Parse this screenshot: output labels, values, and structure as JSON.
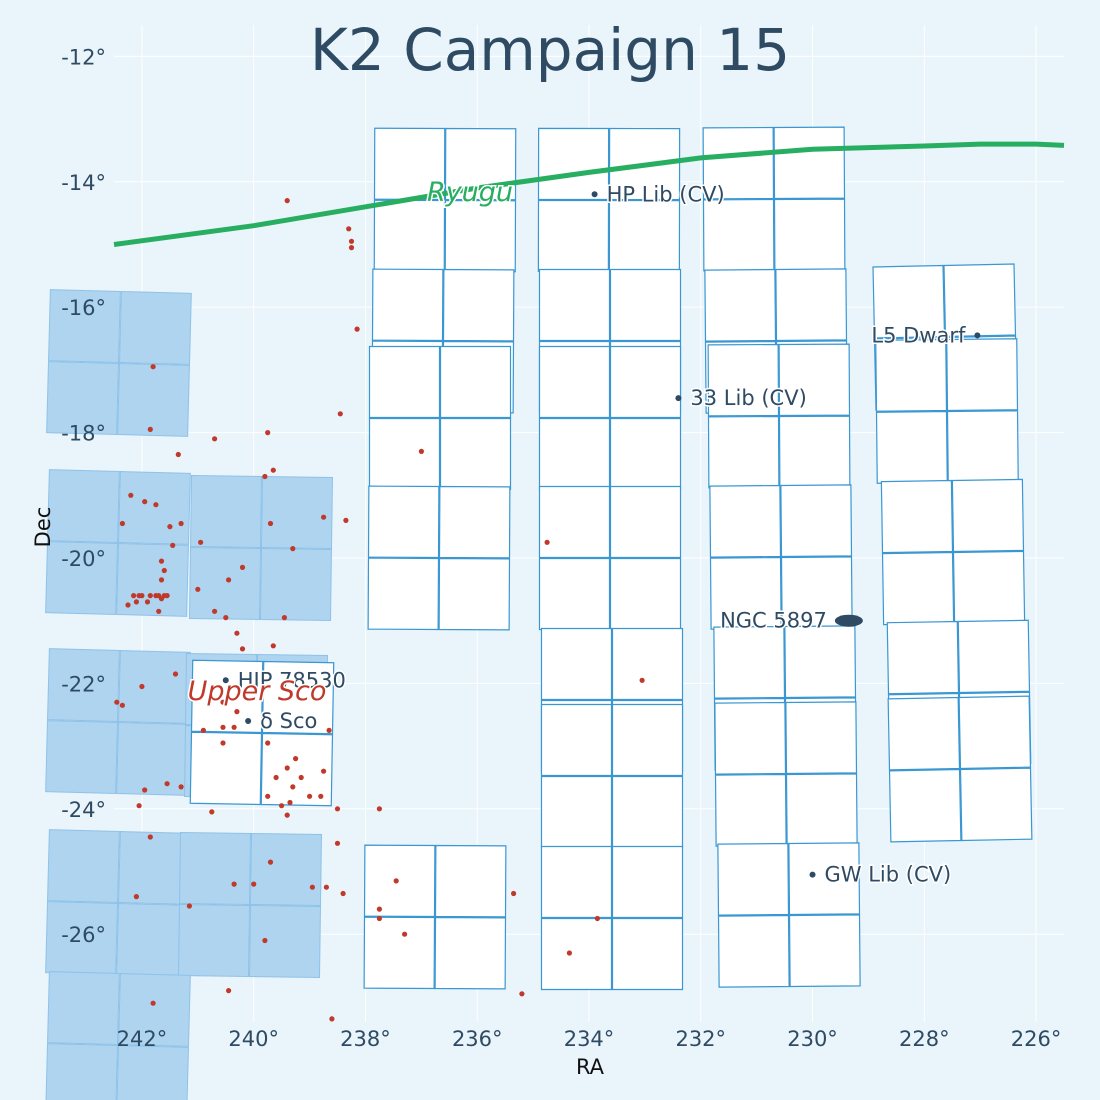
{
  "chart_data": {
    "type": "scatter",
    "title": "K2 Campaign 15",
    "xlabel": "RA",
    "ylabel": "Dec",
    "xlim": [
      242.5,
      225.5
    ],
    "ylim": [
      -27.4,
      -11.5
    ],
    "xticks": [
      242,
      240,
      238,
      236,
      234,
      232,
      230,
      228,
      226
    ],
    "yticks": [
      -12,
      -14,
      -16,
      -18,
      -20,
      -22,
      -24,
      -26
    ],
    "grid": true,
    "xtick_labels": [
      "242°",
      "240°",
      "238°",
      "236°",
      "234°",
      "232°",
      "230°",
      "228°",
      "226°"
    ],
    "ytick_labels": [
      "-12°",
      "-14°",
      "-16°",
      "-18°",
      "-20°",
      "-22°",
      "-24°",
      "-26°"
    ],
    "colors": {
      "background": "#e9f4fb",
      "grid": "#ffffff",
      "channel_edge": "#3a97d2",
      "neighbor_fill": "#aed4f0",
      "ryugu": "#27ae60",
      "upper_sco": "#c0392b",
      "label": "#2f4a63"
    },
    "ryugu_track": {
      "name": "Ryugu",
      "ra": [
        242.5,
        240.0,
        238.0,
        236.0,
        234.0,
        232.0,
        230.0,
        228.0,
        227.0,
        226.0,
        225.5
      ],
      "dec": [
        -15.0,
        -14.7,
        -14.4,
        -14.1,
        -13.85,
        -13.62,
        -13.48,
        -13.43,
        -13.4,
        -13.4,
        -13.42
      ]
    },
    "targets": [
      {
        "name": "HP Lib (CV)",
        "ra": 233.9,
        "dec": -14.2
      },
      {
        "name": "L5 Dwarf",
        "ra": 227.05,
        "dec": -16.45
      },
      {
        "name": "33 Lib (CV)",
        "ra": 232.4,
        "dec": -17.45
      },
      {
        "name": "HIP 78530",
        "ra": 240.5,
        "dec": -21.95
      },
      {
        "name": "δ Sco",
        "ra": 240.1,
        "dec": -22.6
      },
      {
        "name": "GW Lib (CV)",
        "ra": 230.0,
        "dec": -25.05
      }
    ],
    "cluster": {
      "name": "NGC 5897",
      "ra": 229.35,
      "dec": -21.0
    },
    "region_label": "Upper Sco",
    "upper_sco_members": {
      "ra": [
        239.4,
        238.3,
        238.25,
        238.25,
        238.15,
        241.8,
        238.45,
        241.85,
        240.7,
        239.75,
        241.35,
        237.0,
        239.65,
        239.8,
        242.2,
        241.95,
        241.75,
        242.35,
        238.75,
        238.35,
        241.5,
        241.45,
        241.65,
        241.6,
        241.65,
        241.55,
        242.15,
        242.25,
        242.05,
        242.1,
        242.0,
        241.9,
        241.85,
        241.75,
        241.7,
        241.6,
        241.7,
        241.65,
        240.95,
        241.3,
        241.0,
        240.45,
        240.2,
        239.7,
        240.7,
        239.3,
        240.5,
        240.3,
        239.45,
        240.2,
        241.4,
        239.65,
        242.0,
        242.45,
        242.35,
        240.9,
        240.55,
        240.35,
        240.55,
        240.3,
        240.55,
        239.75,
        238.65,
        239.25,
        239.4,
        239.6,
        239.15,
        239.3,
        239.35,
        238.8,
        239.75,
        239.0,
        239.4,
        238.75,
        241.95,
        241.55,
        241.3,
        242.05,
        240.75,
        239.5,
        238.5,
        237.75,
        241.85,
        239.7,
        238.5,
        241.15,
        240.35,
        240.0,
        238.95,
        238.7,
        238.4,
        237.45,
        237.75,
        237.75,
        235.35,
        237.3,
        234.75,
        233.85,
        234.35,
        233.05,
        242.1,
        239.8,
        241.8,
        240.45,
        238.6,
        235.2
      ],
      "dec": [
        -14.3,
        -14.75,
        -14.95,
        -15.05,
        -16.35,
        -16.95,
        -17.7,
        -17.95,
        -18.1,
        -18.0,
        -18.35,
        -18.3,
        -18.6,
        -18.7,
        -19.0,
        -19.1,
        -19.15,
        -19.45,
        -19.35,
        -19.4,
        -19.5,
        -19.8,
        -20.05,
        -20.2,
        -20.35,
        -20.6,
        -20.6,
        -20.75,
        -20.6,
        -20.7,
        -20.6,
        -20.7,
        -20.6,
        -20.6,
        -20.6,
        -20.6,
        -20.85,
        -20.65,
        -19.75,
        -19.45,
        -20.5,
        -20.35,
        -20.15,
        -19.45,
        -20.85,
        -19.85,
        -20.95,
        -21.2,
        -20.95,
        -21.45,
        -21.85,
        -21.4,
        -22.05,
        -22.3,
        -22.35,
        -22.75,
        -22.7,
        -22.7,
        -22.95,
        -22.45,
        -22.3,
        -22.95,
        -22.75,
        -23.2,
        -23.35,
        -23.5,
        -23.5,
        -23.65,
        -23.9,
        -23.8,
        -23.8,
        -23.8,
        -24.1,
        -23.4,
        -23.7,
        -23.6,
        -23.65,
        -23.95,
        -24.05,
        -23.95,
        -24.0,
        -24.0,
        -24.45,
        -24.85,
        -24.55,
        -25.55,
        -25.2,
        -25.2,
        -25.25,
        -25.25,
        -25.35,
        -25.15,
        -25.6,
        -25.75,
        -25.35,
        -26.0,
        -19.75,
        -25.75,
        -26.3,
        -21.95,
        -25.4,
        -26.1,
        -27.1,
        -26.9,
        -27.35,
        -26.95
      ]
    }
  }
}
